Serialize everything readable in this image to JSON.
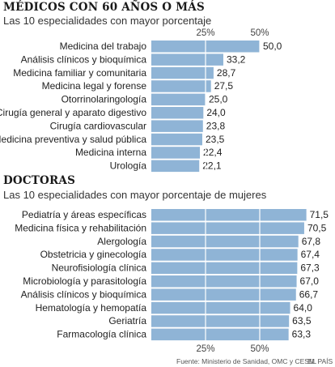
{
  "chart_data": [
    {
      "type": "bar",
      "orientation": "horizontal",
      "title": "MÉDICOS CON 60 AÑOS O MÁS",
      "subtitle": "Las 10 especialidades con mayor porcentaje",
      "categories": [
        "Medicina del trabajo",
        "Análisis clínicos y bioquímica",
        "Medicina familiar y comunitaria",
        "Medicina legal y forense",
        "Otorrinolaringología",
        "Cirugía general y aparato digestivo",
        "Cirugía cardiovascular",
        "Medicina preventiva y salud pública",
        "Medicina interna",
        "Urología"
      ],
      "values": [
        50.0,
        33.2,
        28.7,
        27.5,
        25.0,
        24.0,
        23.8,
        23.5,
        22.4,
        22.1
      ],
      "value_labels": [
        "50,0",
        "33,2",
        "28,7",
        "27,5",
        "25,0",
        "24,0",
        "23,8",
        "23,5",
        "22,4",
        "22,1"
      ],
      "ticks": [
        "25%",
        "50%"
      ],
      "tick_values": [
        25,
        50
      ],
      "tick_position": "top",
      "xlim": [
        0,
        100
      ],
      "grid": true,
      "bar_color": "#8fb4d6",
      "grid_color": "#ffffff"
    },
    {
      "type": "bar",
      "orientation": "horizontal",
      "title": "DOCTORAS",
      "subtitle": "Las 10 especialidades con mayor porcentaje de mujeres",
      "categories": [
        "Pediatría y áreas específicas",
        "Medicina física y rehabilitación",
        "Alergología",
        "Obstetricia y ginecología",
        "Neurofisiología clínica",
        "Microbiología y parasitología",
        "Análisis clínicos y bioquímica",
        "Hematología y hemopatía",
        "Geriatría",
        "Farmacología clínica"
      ],
      "values": [
        71.5,
        70.5,
        67.8,
        67.4,
        67.3,
        67.0,
        66.7,
        64.0,
        63.5,
        63.3
      ],
      "value_labels": [
        "71,5",
        "70,5",
        "67,8",
        "67,4",
        "67,3",
        "67,0",
        "66,7",
        "64,0",
        "63,5",
        "63,3"
      ],
      "ticks": [
        "25%",
        "50%"
      ],
      "tick_values": [
        25,
        50
      ],
      "tick_position": "bottom",
      "xlim": [
        0,
        100
      ],
      "grid": true,
      "bar_color": "#8fb4d6",
      "grid_color": "#ffffff"
    }
  ],
  "source": "Fuente: Ministerio de Sanidad, OMC y CESM.",
  "brand": "EL PAÍS"
}
